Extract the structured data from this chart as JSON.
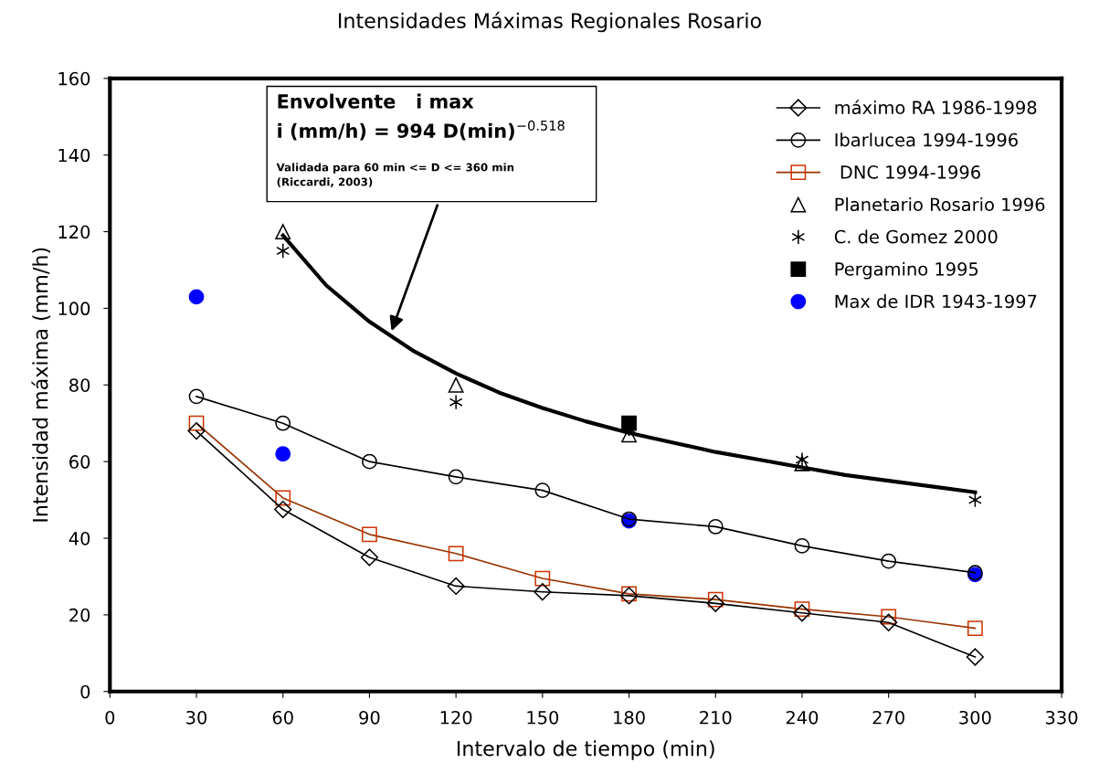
{
  "chart_data": {
    "type": "line",
    "title": "Intensidades Máximas Regionales Rosario",
    "xlabel": "Intervalo de tiempo (min)",
    "ylabel": "Intensidad máxima (mm/h)",
    "xlim": [
      0,
      330
    ],
    "xticks": [
      0,
      30,
      60,
      90,
      120,
      150,
      180,
      210,
      240,
      270,
      300,
      330
    ],
    "ylim": [
      0,
      160
    ],
    "yticks": [
      0,
      20,
      40,
      60,
      80,
      100,
      120,
      140,
      160
    ],
    "grid": false,
    "legend": "top right",
    "annotations": [
      "Envolvente   i max\ni (mm/h) = 994 D(min)$^{−0.518}$",
      "Validada para 60 min <= D <= 360 min\n(Riccardi, 2003)"
    ],
    "series": [
      {
        "name": "máximo RA 1986-1998",
        "color": "#000000",
        "marker": "diamond",
        "x": [
          30,
          60,
          90,
          120,
          150,
          180,
          210,
          240,
          270,
          300
        ],
        "values": [
          68,
          47.5,
          35,
          27.5,
          26,
          25,
          23,
          20.5,
          18,
          9
        ]
      },
      {
        "name": "Ibarlucea 1994-1996",
        "color": "#000000",
        "marker": "circle",
        "x": [
          30,
          60,
          90,
          120,
          150,
          180,
          210,
          240,
          270,
          300
        ],
        "values": [
          77,
          70,
          60,
          56,
          52.5,
          45,
          43,
          38,
          34,
          31
        ]
      },
      {
        "name": " DNC 1994-1996",
        "color": "#993300",
        "marker": "square",
        "x": [
          30,
          60,
          90,
          120,
          150,
          180,
          210,
          240,
          270,
          300
        ],
        "values": [
          70,
          50.5,
          41,
          36,
          29.5,
          25.5,
          24,
          21.5,
          19.5,
          16.5
        ]
      },
      {
        "name": "Planetario Rosario 1996",
        "type": "scatter",
        "color": "#000000",
        "marker": "triangle",
        "x": [
          60,
          120,
          180,
          240
        ],
        "values": [
          120,
          80,
          67,
          59.5
        ]
      },
      {
        "name": "C. de Gomez 2000",
        "type": "scatter",
        "color": "#000000",
        "marker": "cross",
        "x": [
          60,
          120,
          180,
          240,
          300
        ],
        "values": [
          115,
          75.5,
          68.5,
          60.5,
          50
        ]
      },
      {
        "name": "Pergamino 1995",
        "type": "scatter",
        "color": "#000000",
        "marker": "square",
        "x": [
          180
        ],
        "values": [
          70
        ]
      },
      {
        "name": "Max de IDR 1943-1997",
        "type": "scatter",
        "color": "#0000ff",
        "marker": "circle",
        "x": [
          30,
          60,
          180,
          300
        ],
        "values": [
          103,
          62,
          44.5,
          30.5
        ]
      },
      {
        "color": "#000000",
        "marker": "none",
        "x": [
          60,
          75,
          90,
          105,
          120,
          135,
          150,
          165,
          180,
          195,
          210,
          225,
          240,
          255,
          270,
          285,
          300
        ],
        "values": [
          119,
          106,
          96.5,
          89,
          83,
          78,
          74,
          70.5,
          67.5,
          65,
          62.5,
          60.5,
          58.5,
          56.5,
          55,
          53.5,
          52
        ]
      }
    ]
  }
}
